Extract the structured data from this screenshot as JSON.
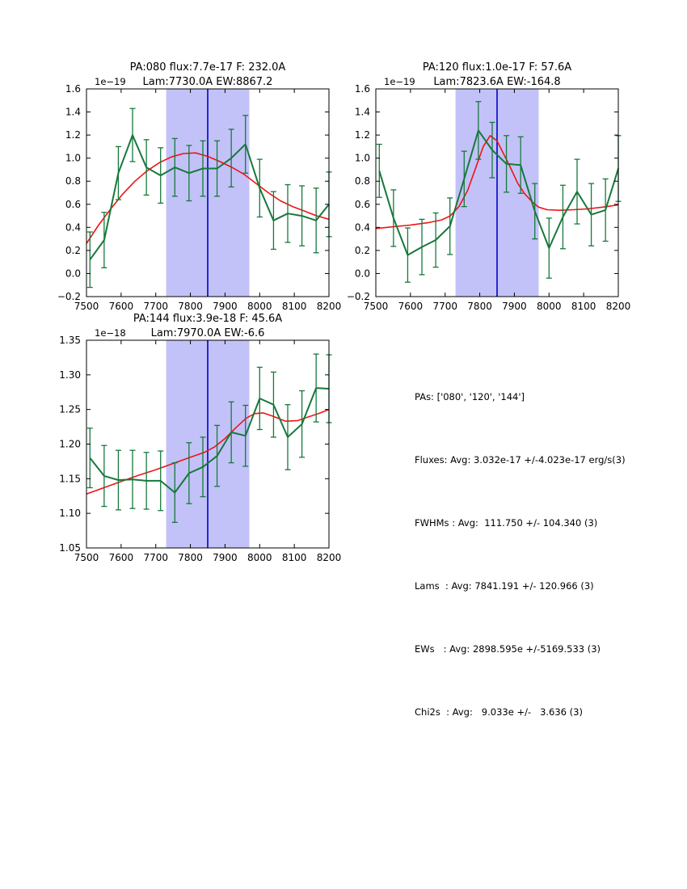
{
  "colors": {
    "spectrum": "#17783c",
    "fit": "#f01414",
    "vline": "#0000cc",
    "shade": "#c2c2f8",
    "frame": "#000000"
  },
  "stats_panel": {
    "lines": [
      "PAs: ['080', '120', '144']",
      "Fluxes: Avg: 3.032e-17 +/-4.023e-17 erg/s(3)",
      "FWHMs : Avg:  111.750 +/- 104.340 (3)",
      "Lams  : Avg: 7841.191 +/- 120.966 (3)",
      "EWs   : Avg: 2898.595e +/-5169.533 (3)",
      "Chi2s  : Avg:   9.033e +/-   3.636 (3)"
    ]
  },
  "chart_data": [
    {
      "id": "pa080",
      "type": "line",
      "title1": "PA:080 flux:7.7e-17 F: 232.0A",
      "title2": "Lam:7730.0A EW:8867.2",
      "offset": "1e−19",
      "xlim": [
        7500,
        8200
      ],
      "ylim": [
        -0.2,
        1.6
      ],
      "xtick_vals": [
        7500,
        7600,
        7700,
        7800,
        7900,
        8000,
        8100,
        8200
      ],
      "xtick_labels": [
        "7500",
        "7600",
        "7700",
        "7800",
        "7900",
        "8000",
        "8100",
        "8200"
      ],
      "ytick_vals": [
        -0.2,
        0.0,
        0.2,
        0.4,
        0.6,
        0.8,
        1.0,
        1.2,
        1.4,
        1.6
      ],
      "ytick_labels": [
        "−0.2",
        "0.0",
        "0.2",
        "0.4",
        "0.6",
        "0.8",
        "1.0",
        "1.2",
        "1.4",
        "1.6"
      ],
      "shade": [
        7730,
        7970
      ],
      "vline": 7850,
      "x": [
        7510,
        7551,
        7592,
        7633,
        7673,
        7714,
        7755,
        7796,
        7836,
        7877,
        7918,
        7959,
        8000,
        8040,
        8081,
        8122,
        8163,
        8200
      ],
      "y": [
        0.12,
        0.29,
        0.87,
        1.2,
        0.92,
        0.85,
        0.92,
        0.87,
        0.91,
        0.91,
        1.0,
        1.12,
        0.74,
        0.46,
        0.52,
        0.5,
        0.46,
        0.6
      ],
      "yerr": [
        0.24,
        0.24,
        0.23,
        0.23,
        0.24,
        0.24,
        0.25,
        0.24,
        0.24,
        0.24,
        0.25,
        0.25,
        0.25,
        0.25,
        0.25,
        0.26,
        0.28,
        0.28
      ],
      "fit": [
        [
          7500,
          0.26
        ],
        [
          7535,
          0.42
        ],
        [
          7570,
          0.56
        ],
        [
          7605,
          0.69
        ],
        [
          7640,
          0.8
        ],
        [
          7675,
          0.89
        ],
        [
          7710,
          0.96
        ],
        [
          7745,
          1.01
        ],
        [
          7780,
          1.04
        ],
        [
          7815,
          1.045
        ],
        [
          7850,
          1.015
        ],
        [
          7885,
          0.97
        ],
        [
          7920,
          0.92
        ],
        [
          7955,
          0.86
        ],
        [
          7990,
          0.78
        ],
        [
          8025,
          0.7
        ],
        [
          8060,
          0.63
        ],
        [
          8095,
          0.58
        ],
        [
          8130,
          0.54
        ],
        [
          8165,
          0.5
        ],
        [
          8200,
          0.47
        ]
      ]
    },
    {
      "id": "pa120",
      "type": "line",
      "title1": "PA:120 flux:1.0e-17 F: 57.6A",
      "title2": "Lam:7823.6A EW:-164.8",
      "offset": "1e−19",
      "xlim": [
        7500,
        8200
      ],
      "ylim": [
        -0.2,
        1.6
      ],
      "xtick_vals": [
        7500,
        7600,
        7700,
        7800,
        7900,
        8000,
        8100,
        8200
      ],
      "xtick_labels": [
        "7500",
        "7600",
        "7700",
        "7800",
        "7900",
        "8000",
        "8100",
        "8200"
      ],
      "ytick_vals": [
        -0.2,
        0.0,
        0.2,
        0.4,
        0.6,
        0.8,
        1.0,
        1.2,
        1.4,
        1.6
      ],
      "ytick_labels": [
        "−0.2",
        "0.0",
        "0.2",
        "0.4",
        "0.6",
        "0.8",
        "1.0",
        "1.2",
        "1.4",
        "1.6"
      ],
      "shade": [
        7730,
        7970
      ],
      "vline": 7850,
      "x": [
        7510,
        7551,
        7592,
        7633,
        7673,
        7714,
        7755,
        7796,
        7836,
        7877,
        7918,
        7959,
        8000,
        8040,
        8081,
        8122,
        8163,
        8200
      ],
      "y": [
        0.89,
        0.48,
        0.16,
        0.23,
        0.29,
        0.41,
        0.82,
        1.24,
        1.07,
        0.95,
        0.94,
        0.54,
        0.22,
        0.49,
        0.71,
        0.51,
        0.55,
        0.91
      ],
      "yerr": [
        0.23,
        0.245,
        0.235,
        0.24,
        0.235,
        0.245,
        0.24,
        0.25,
        0.24,
        0.245,
        0.245,
        0.24,
        0.26,
        0.275,
        0.28,
        0.27,
        0.27,
        0.285
      ],
      "fit": [
        [
          7500,
          0.39
        ],
        [
          7550,
          0.405
        ],
        [
          7600,
          0.42
        ],
        [
          7650,
          0.44
        ],
        [
          7690,
          0.465
        ],
        [
          7715,
          0.5
        ],
        [
          7740,
          0.58
        ],
        [
          7765,
          0.72
        ],
        [
          7790,
          0.93
        ],
        [
          7810,
          1.1
        ],
        [
          7830,
          1.195
        ],
        [
          7850,
          1.15
        ],
        [
          7870,
          1.03
        ],
        [
          7890,
          0.91
        ],
        [
          7910,
          0.78
        ],
        [
          7930,
          0.69
        ],
        [
          7950,
          0.625
        ],
        [
          7970,
          0.575
        ],
        [
          7995,
          0.553
        ],
        [
          8030,
          0.548
        ],
        [
          8070,
          0.553
        ],
        [
          8110,
          0.56
        ],
        [
          8155,
          0.575
        ],
        [
          8200,
          0.595
        ]
      ]
    },
    {
      "id": "pa144",
      "type": "line",
      "title1": "PA:144 flux:3.9e-18 F: 45.6A",
      "title2": "Lam:7970.0A EW:-6.6",
      "offset": "1e−18",
      "xlim": [
        7500,
        8200
      ],
      "ylim": [
        1.05,
        1.35
      ],
      "xtick_vals": [
        7500,
        7600,
        7700,
        7800,
        7900,
        8000,
        8100,
        8200
      ],
      "xtick_labels": [
        "7500",
        "7600",
        "7700",
        "7800",
        "7900",
        "8000",
        "8100",
        "8200"
      ],
      "ytick_vals": [
        1.05,
        1.1,
        1.15,
        1.2,
        1.25,
        1.3,
        1.35
      ],
      "ytick_labels": [
        "1.05",
        "1.10",
        "1.15",
        "1.20",
        "1.25",
        "1.30",
        "1.35"
      ],
      "shade": [
        7730,
        7970
      ],
      "vline": 7850,
      "x": [
        7510,
        7551,
        7592,
        7633,
        7673,
        7714,
        7755,
        7796,
        7836,
        7877,
        7918,
        7959,
        8000,
        8040,
        8081,
        8122,
        8163,
        8200
      ],
      "y": [
        1.18,
        1.154,
        1.148,
        1.149,
        1.147,
        1.147,
        1.13,
        1.158,
        1.167,
        1.183,
        1.217,
        1.212,
        1.266,
        1.257,
        1.21,
        1.229,
        1.281,
        1.28
      ],
      "yerr": [
        0.043,
        0.044,
        0.043,
        0.042,
        0.041,
        0.043,
        0.043,
        0.044,
        0.043,
        0.044,
        0.044,
        0.044,
        0.045,
        0.047,
        0.047,
        0.048,
        0.049,
        0.049
      ],
      "fit": [
        [
          7500,
          1.128
        ],
        [
          7550,
          1.137
        ],
        [
          7600,
          1.146
        ],
        [
          7650,
          1.155
        ],
        [
          7700,
          1.163
        ],
        [
          7750,
          1.172
        ],
        [
          7800,
          1.181
        ],
        [
          7840,
          1.188
        ],
        [
          7870,
          1.196
        ],
        [
          7900,
          1.208
        ],
        [
          7930,
          1.223
        ],
        [
          7960,
          1.237
        ],
        [
          7985,
          1.244
        ],
        [
          8010,
          1.245
        ],
        [
          8040,
          1.24
        ],
        [
          8075,
          1.233
        ],
        [
          8110,
          1.234
        ],
        [
          8145,
          1.24
        ],
        [
          8170,
          1.244
        ],
        [
          8200,
          1.25
        ]
      ]
    }
  ]
}
